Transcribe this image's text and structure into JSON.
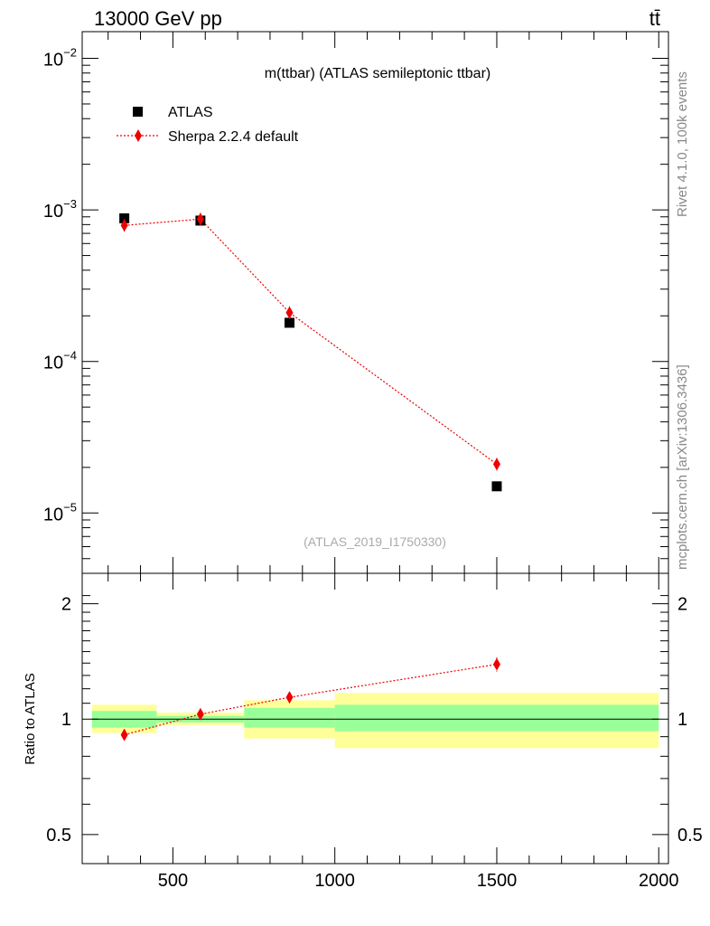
{
  "header": {
    "left": "13000 GeV pp",
    "right": "tt̄"
  },
  "side_text": {
    "rivet": "Rivet 4.1.0,  100k events",
    "mcplots": "mcplots.cern.ch [arXiv:1306.3436]"
  },
  "analysis_ref": "(ATLAS_2019_I1750330)",
  "colors": {
    "data": "#000000",
    "mc": "#ee0000",
    "band_inner": "#99ff99",
    "band_outer": "#ffff99"
  },
  "chart_data": [
    {
      "type": "scatter",
      "title": "m(ttbar) (ATLAS semileptonic ttbar)",
      "yscale": "log",
      "xlim": [
        220,
        2030
      ],
      "ylim": [
        4e-06,
        0.015
      ],
      "ytick_labels": [
        "10−5",
        "10−4",
        "10−3",
        "10−2"
      ],
      "legend": [
        "ATLAS",
        "Sherpa 2.2.4 default"
      ],
      "series": [
        {
          "name": "ATLAS",
          "x": [
            350,
            585,
            860,
            1500
          ],
          "y": [
            0.00088,
            0.00085,
            0.00018,
            1.5e-05
          ]
        },
        {
          "name": "Sherpa 2.2.4 default",
          "x": [
            350,
            585,
            860,
            1500
          ],
          "y": [
            0.00079,
            0.00087,
            0.00021,
            2.1e-05
          ]
        }
      ]
    },
    {
      "type": "scatter",
      "ylabel": "Ratio to ATLAS",
      "yscale": "log",
      "xlim": [
        220,
        2030
      ],
      "ylim": [
        0.42,
        2.4
      ],
      "x_ticks": [
        500,
        1000,
        1500,
        2000
      ],
      "x_tick_labels": [
        "500",
        "1000",
        "1500",
        "2000"
      ],
      "y_ticks": [
        0.5,
        1,
        2
      ],
      "y_tick_labels": [
        "0.5",
        "1",
        "2"
      ],
      "bands": [
        {
          "x0": 250,
          "x1": 450,
          "inner": [
            0.95,
            1.05
          ],
          "outer": [
            0.92,
            1.09
          ]
        },
        {
          "x0": 450,
          "x1": 720,
          "inner": [
            0.98,
            1.02
          ],
          "outer": [
            0.965,
            1.04
          ]
        },
        {
          "x0": 720,
          "x1": 1000,
          "inner": [
            0.95,
            1.07
          ],
          "outer": [
            0.89,
            1.12
          ]
        },
        {
          "x0": 1000,
          "x1": 2000,
          "inner": [
            0.93,
            1.09
          ],
          "outer": [
            0.84,
            1.17
          ]
        }
      ],
      "series": [
        {
          "name": "Sherpa 2.2.4 default / ATLAS",
          "x": [
            350,
            585,
            860,
            1500
          ],
          "y": [
            0.91,
            1.03,
            1.14,
            1.39
          ],
          "err": [
            0.01,
            0.01,
            0.03,
            0.06
          ]
        }
      ]
    }
  ]
}
